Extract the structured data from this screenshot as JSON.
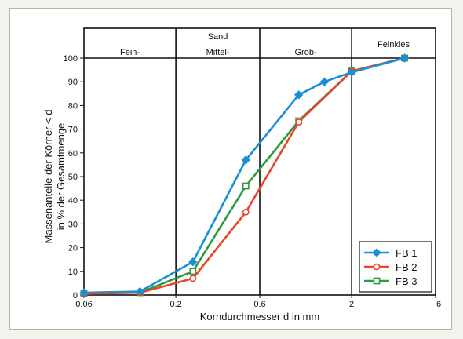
{
  "chart_data": {
    "type": "line",
    "xlabel": "Korndurchmesser d in mm",
    "ylabel": [
      "Massenanteile der Körner < d",
      "in % der Gesamtmenge"
    ],
    "x_scale": "log",
    "x_ticks": [
      0.06,
      0.2,
      0.6,
      2,
      6
    ],
    "x_tick_labels": [
      "0.06",
      "0.2",
      "0.6",
      "2",
      "6"
    ],
    "xlim": [
      0.06,
      6
    ],
    "ylim": [
      0,
      100
    ],
    "y_ticks": [
      0,
      10,
      20,
      30,
      40,
      50,
      60,
      70,
      80,
      90,
      100
    ],
    "grid": false,
    "legend_position": "bottom-right",
    "zones": {
      "group_label": "Sand",
      "items": [
        {
          "label": "Fein-",
          "x_from": 0.06,
          "x_to": 0.2
        },
        {
          "label": "Mittel-",
          "x_from": 0.2,
          "x_to": 0.6
        },
        {
          "label": "Grob-",
          "x_from": 0.6,
          "x_to": 2
        },
        {
          "label": "Feinkies",
          "x_from": 2,
          "x_to": 6
        }
      ]
    },
    "series": [
      {
        "name": "FB 1",
        "color": "#1a8fd6",
        "marker": "diamond",
        "points": [
          [
            0.06,
            1
          ],
          [
            0.125,
            1.5
          ],
          [
            0.25,
            14
          ],
          [
            0.5,
            57
          ],
          [
            1.0,
            84.5
          ],
          [
            1.4,
            90
          ],
          [
            2.0,
            94
          ],
          [
            4.0,
            100
          ]
        ]
      },
      {
        "name": "FB 2",
        "color": "#e8452a",
        "marker": "circle",
        "points": [
          [
            0.06,
            0.5
          ],
          [
            0.125,
            1
          ],
          [
            0.25,
            7
          ],
          [
            0.5,
            35
          ],
          [
            1.0,
            73
          ],
          [
            2.0,
            94.5
          ],
          [
            4.0,
            100
          ]
        ]
      },
      {
        "name": "FB 3",
        "color": "#2c9b3f",
        "marker": "square",
        "points": [
          [
            0.06,
            0.5
          ],
          [
            0.125,
            1
          ],
          [
            0.25,
            10
          ],
          [
            0.5,
            46
          ],
          [
            1.0,
            73.5
          ],
          [
            2.0,
            94.5
          ],
          [
            4.0,
            100
          ]
        ]
      }
    ]
  }
}
